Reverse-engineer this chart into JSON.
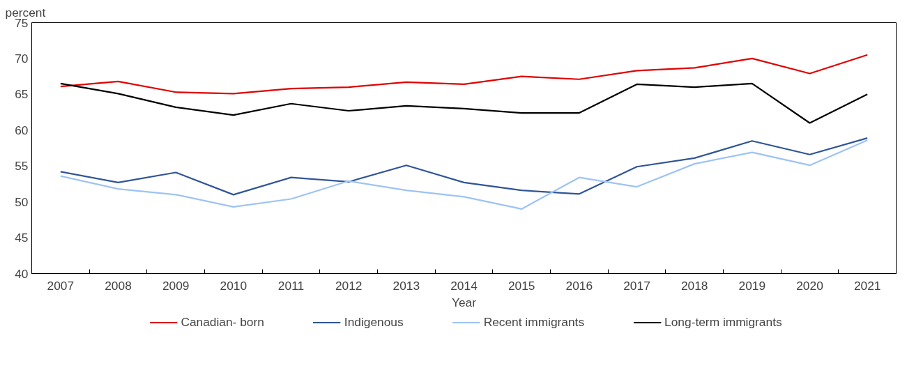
{
  "chart_data": {
    "type": "line",
    "ylabel": "percent",
    "xlabel": "Year",
    "categories": [
      "2007",
      "2008",
      "2009",
      "2010",
      "2011",
      "2012",
      "2013",
      "2014",
      "2015",
      "2016",
      "2017",
      "2018",
      "2019",
      "2020",
      "2021"
    ],
    "series": [
      {
        "name": "Canadian- born",
        "color": "#e00000",
        "values": [
          66.1,
          66.8,
          65.3,
          65.1,
          65.8,
          66.0,
          66.7,
          66.4,
          67.5,
          67.1,
          68.3,
          68.7,
          70.0,
          67.9,
          70.5
        ]
      },
      {
        "name": "Indigenous",
        "color": "#2f5597",
        "values": [
          54.2,
          52.7,
          54.1,
          51.0,
          53.4,
          52.8,
          55.1,
          52.7,
          51.6,
          51.1,
          54.9,
          56.1,
          58.5,
          56.6,
          58.9
        ]
      },
      {
        "name": "Recent immigrants",
        "color": "#9dc3f5",
        "values": [
          53.6,
          51.8,
          51.0,
          49.3,
          50.4,
          52.9,
          51.6,
          50.7,
          49.0,
          53.4,
          52.1,
          55.3,
          56.9,
          55.1,
          58.6
        ]
      },
      {
        "name": "Long-term immigrants",
        "color": "#000000",
        "values": [
          66.5,
          65.1,
          63.2,
          62.1,
          63.7,
          62.7,
          63.4,
          63.0,
          62.4,
          62.4,
          66.4,
          66.0,
          66.5,
          61.0,
          65.0
        ]
      }
    ],
    "ylim": [
      40,
      75
    ],
    "yticks": [
      40,
      45,
      50,
      55,
      60,
      65,
      70,
      75
    ],
    "grid": false,
    "legend": "bottom",
    "marker": "none",
    "line_style": "solid"
  }
}
